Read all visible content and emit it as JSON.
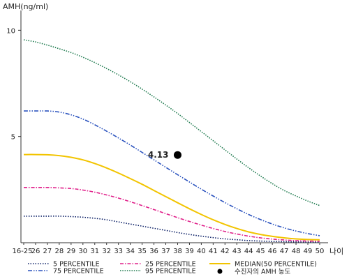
{
  "chart_data": {
    "type": "line",
    "ylabel": "AMH(ng/ml)",
    "xlabel": "나이",
    "ylim": [
      0,
      10.8
    ],
    "yticks": [
      5,
      10
    ],
    "categories": [
      "16-25",
      "26",
      "27",
      "28",
      "29",
      "30",
      "31",
      "32",
      "33",
      "34",
      "35",
      "36",
      "37",
      "38",
      "39",
      "40",
      "41",
      "42",
      "43",
      "44",
      "45",
      "46",
      "47",
      "48",
      "49",
      "50"
    ],
    "series": [
      {
        "name": "5 PERCENTILE",
        "color": "#0b1f66",
        "dash": "1.5,2",
        "values": [
          1.25,
          1.25,
          1.25,
          1.25,
          1.23,
          1.2,
          1.15,
          1.08,
          0.98,
          0.88,
          0.78,
          0.68,
          0.58,
          0.48,
          0.39,
          0.31,
          0.24,
          0.18,
          0.14,
          0.1,
          0.08,
          0.06,
          0.05,
          0.04,
          0.03,
          0.03
        ]
      },
      {
        "name": "25 PERCENTILE",
        "color": "#e0208a",
        "dash": "5,2,1.5,2",
        "values": [
          2.6,
          2.6,
          2.6,
          2.58,
          2.55,
          2.48,
          2.38,
          2.25,
          2.1,
          1.93,
          1.75,
          1.56,
          1.37,
          1.18,
          1.0,
          0.83,
          0.67,
          0.53,
          0.41,
          0.31,
          0.23,
          0.17,
          0.13,
          0.1,
          0.08,
          0.07
        ]
      },
      {
        "name": "MEDIAN(50 PERCENTILE)",
        "color": "#f2c400",
        "dash": "",
        "values": [
          4.15,
          4.15,
          4.14,
          4.1,
          4.02,
          3.9,
          3.73,
          3.52,
          3.28,
          3.02,
          2.75,
          2.46,
          2.17,
          1.88,
          1.6,
          1.33,
          1.08,
          0.86,
          0.67,
          0.51,
          0.39,
          0.3,
          0.23,
          0.18,
          0.15,
          0.14
        ]
      },
      {
        "name": "75 PERCENTILE",
        "color": "#2a52be",
        "dash": "6,2,1.5,2,1.5,2",
        "values": [
          6.2,
          6.2,
          6.2,
          6.15,
          6.02,
          5.82,
          5.55,
          5.25,
          4.93,
          4.6,
          4.25,
          3.9,
          3.55,
          3.2,
          2.86,
          2.52,
          2.2,
          1.89,
          1.6,
          1.33,
          1.09,
          0.88,
          0.7,
          0.55,
          0.43,
          0.33
        ]
      },
      {
        "name": "95 PERCENTILE",
        "color": "#1e7a4e",
        "dash": "1.5,1.8",
        "values": [
          9.55,
          9.45,
          9.3,
          9.13,
          8.95,
          8.73,
          8.48,
          8.2,
          7.9,
          7.58,
          7.23,
          6.86,
          6.48,
          6.08,
          5.66,
          5.23,
          4.8,
          4.37,
          3.94,
          3.53,
          3.14,
          2.78,
          2.46,
          2.2,
          1.96,
          1.75
        ]
      }
    ],
    "points": [
      {
        "name": "수진자의 AMH 농도",
        "x": "38",
        "y": 4.13,
        "label": "4.13",
        "color": "#000000"
      }
    ],
    "legend_position": "bottom"
  }
}
